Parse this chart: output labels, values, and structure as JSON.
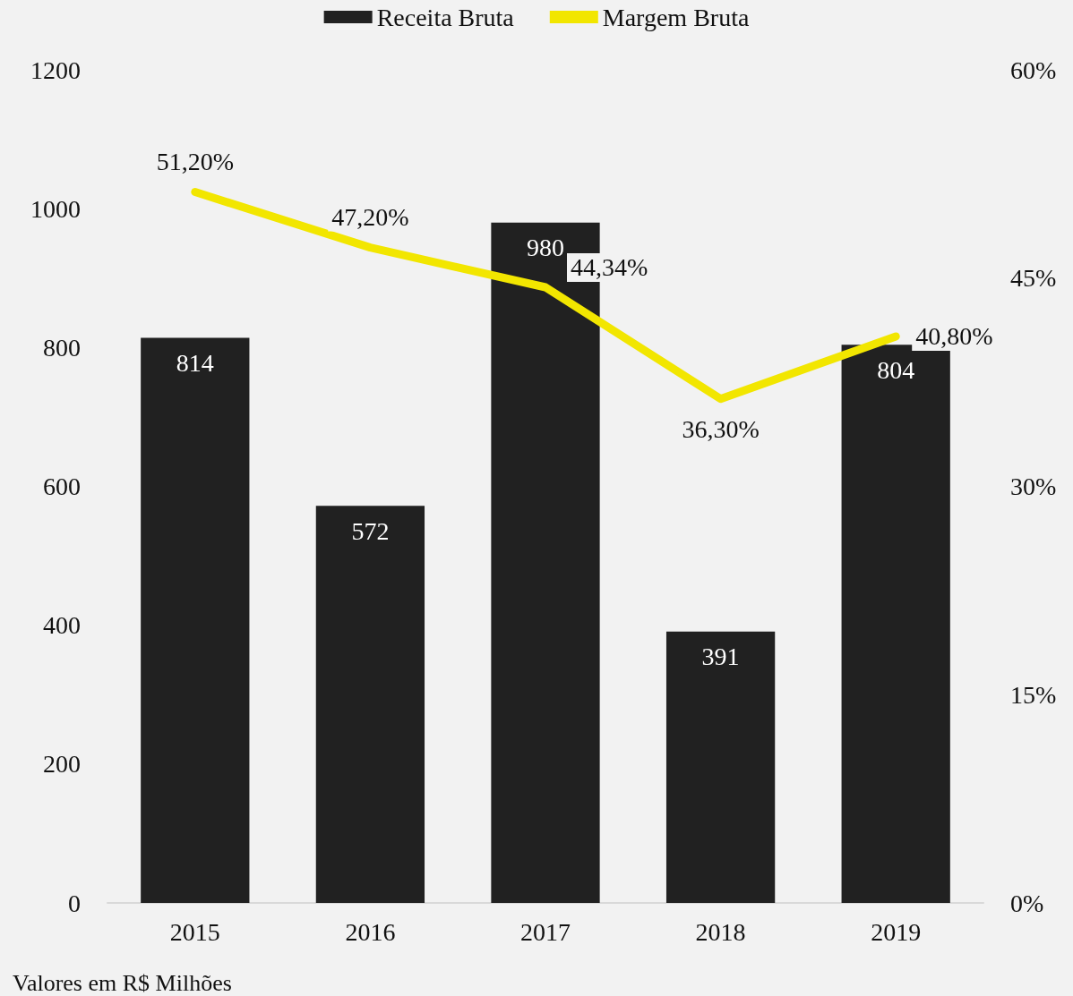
{
  "chart_data": {
    "type": "bar",
    "categories": [
      "2015",
      "2016",
      "2017",
      "2018",
      "2019"
    ],
    "series": [
      {
        "name": "Receita Bruta",
        "color": "#212121",
        "values": [
          814,
          572,
          980,
          391,
          804
        ],
        "value_labels": [
          "814",
          "572",
          "980",
          "391",
          "804"
        ]
      },
      {
        "name": "Margem Bruta",
        "type": "line",
        "axis": "y2",
        "color": "#f2e600",
        "values": [
          51.2,
          47.2,
          44.34,
          36.3,
          40.8
        ],
        "value_labels": [
          "51,20%",
          "47,20%",
          "44,34%",
          "36,30%",
          "40,80%"
        ],
        "marker": "none"
      }
    ],
    "ylim": [
      0,
      1200
    ],
    "yticks": [
      0,
      200,
      400,
      600,
      800,
      1000,
      1200
    ],
    "y2lim": [
      0,
      60
    ],
    "y2ticks": [
      {
        "value": 0,
        "label": "0%"
      },
      {
        "value": 15,
        "label": "15%"
      },
      {
        "value": 30,
        "label": "30%"
      },
      {
        "value": 45,
        "label": "45%"
      },
      {
        "value": 60,
        "label": "60%"
      }
    ],
    "grid": false,
    "legend": "top",
    "annotations": [
      "Valores em R$ Milhões"
    ]
  }
}
